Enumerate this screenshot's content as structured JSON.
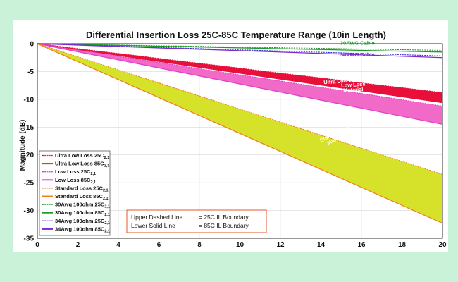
{
  "chart_data": {
    "type": "line",
    "title": "Differential Insertion Loss 25C-85C Temperature Range (10in Length)",
    "xlabel": "",
    "ylabel": "Magnitude (dB)",
    "xlim": [
      0,
      20
    ],
    "ylim": [
      -35,
      0
    ],
    "xticks": [
      0,
      2,
      4,
      6,
      8,
      10,
      12,
      14,
      16,
      18,
      20
    ],
    "yticks": [
      0,
      -5,
      -10,
      -15,
      -20,
      -25,
      -30,
      -35
    ],
    "grid": true,
    "bands": [
      {
        "name": "Standard Loss Material",
        "color": "#d6e22a",
        "upper": [
          [
            0,
            0
          ],
          [
            20,
            -23.5
          ]
        ],
        "lower": [
          [
            0,
            0
          ],
          [
            20,
            -32.3
          ]
        ]
      },
      {
        "name": "Low Loss Material",
        "color": "#f26ac8",
        "upper": [
          [
            0,
            0
          ],
          [
            20,
            -11.2
          ]
        ],
        "lower": [
          [
            0,
            0
          ],
          [
            20,
            -14.5
          ]
        ]
      },
      {
        "name": "Ultra Low Loss Material",
        "color": "#e8103a",
        "upper": [
          [
            0,
            0
          ],
          [
            20,
            -8.8
          ]
        ],
        "lower": [
          [
            0,
            0
          ],
          [
            20,
            -10.6
          ]
        ]
      }
    ],
    "series": [
      {
        "name": "Ultra Low Loss 25C",
        "sub": "2,1",
        "color": "#e8103a",
        "style": "dashed",
        "x": [
          0,
          20
        ],
        "y": [
          0,
          -8.8
        ]
      },
      {
        "name": "Ultra Low Loss 85C",
        "sub": "2,1",
        "color": "#e8103a",
        "style": "solid",
        "x": [
          0,
          20
        ],
        "y": [
          0,
          -10.6
        ]
      },
      {
        "name": "Low Loss 25C",
        "sub": "2,1",
        "color": "#e040d0",
        "style": "dashed",
        "x": [
          0,
          20
        ],
        "y": [
          0,
          -11.2
        ]
      },
      {
        "name": "Low Loss 85C",
        "sub": "2,1",
        "color": "#e040d0",
        "style": "solid",
        "x": [
          0,
          20
        ],
        "y": [
          0,
          -14.5
        ]
      },
      {
        "name": "Standard Loss 25C",
        "sub": "2,1",
        "color": "#f08020",
        "style": "dashed",
        "x": [
          0,
          20
        ],
        "y": [
          0,
          -23.5
        ]
      },
      {
        "name": "Standard Loss 85C",
        "sub": "2,1",
        "color": "#f08020",
        "style": "solid",
        "x": [
          0,
          20
        ],
        "y": [
          0,
          -32.3
        ]
      },
      {
        "name": "30Awg 100ohm 25C",
        "sub": "2,1",
        "color": "#1e9a2a",
        "style": "dashed",
        "x": [
          0,
          20
        ],
        "y": [
          0,
          -1.2
        ]
      },
      {
        "name": "30Awg 100ohm 85C",
        "sub": "2,1",
        "color": "#1e9a2a",
        "style": "solid",
        "x": [
          0,
          20
        ],
        "y": [
          0,
          -1.5
        ]
      },
      {
        "name": "34Awg 100ohm 25C",
        "sub": "2,1",
        "color": "#3a2ad0",
        "style": "dashed",
        "x": [
          0,
          20
        ],
        "y": [
          0,
          -2.2
        ]
      },
      {
        "name": "34Awg 100ohm 85C",
        "sub": "2,1",
        "color": "#7a2ad0",
        "style": "solid",
        "x": [
          0,
          20
        ],
        "y": [
          0,
          -2.5
        ]
      }
    ],
    "annotations": [
      {
        "text": "30AWG Cable",
        "x": 15.8,
        "y": -0.2,
        "color": "#1e9a2a",
        "rotate": 0
      },
      {
        "text": "34AWG Cable",
        "x": 15.8,
        "y": -2.3,
        "color": "#7a2ad0",
        "rotate": 0
      },
      {
        "text": "Ultra Low Loss Material",
        "x": 15.6,
        "y": -6.9,
        "color": "#ffffff",
        "rotate": -4
      },
      {
        "text": "Low Loss",
        "x": 15.6,
        "y": -7.7,
        "color": "#ffffff",
        "rotate": -4
      },
      {
        "text": "Material",
        "x": 15.6,
        "y": -8.6,
        "color": "#ffffff",
        "rotate": -4
      },
      {
        "text": "Standard Loss",
        "x": 14.8,
        "y": -16.2,
        "color": "#ffffff",
        "rotate": -28
      },
      {
        "text": "Material",
        "x": 14.8,
        "y": -17.4,
        "color": "#ffffff",
        "rotate": -28
      }
    ],
    "note": [
      {
        "label": "Upper Dashed Line",
        "value": "= 25C IL Boundary"
      },
      {
        "label": "Lower Solid Line",
        "value": "= 85C IL Boundary"
      }
    ]
  }
}
